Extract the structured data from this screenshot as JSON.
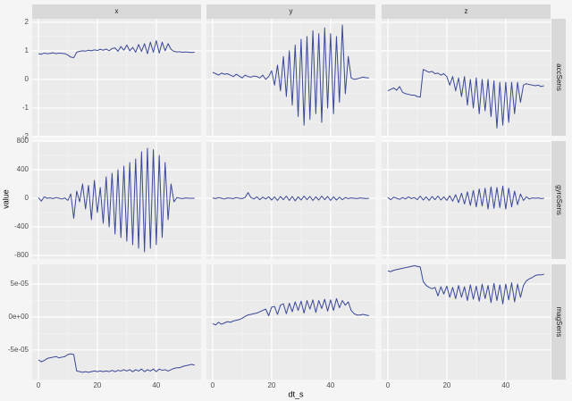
{
  "chart_data": {
    "type": "facet_line",
    "xlabel": "dt_s",
    "ylabel": "value",
    "color": "#1a2a8a",
    "grid": true,
    "columns": [
      "x",
      "y",
      "z"
    ],
    "xlim": [
      -2.1,
      55.2
    ],
    "xticks": [
      0,
      20,
      40
    ],
    "x": [
      0,
      1,
      2,
      3,
      4,
      5,
      6,
      7,
      8,
      9,
      10,
      11,
      12,
      13,
      14,
      15,
      16,
      17,
      18,
      19,
      20,
      21,
      22,
      23,
      24,
      25,
      26,
      27,
      28,
      29,
      30,
      31,
      32,
      33,
      34,
      35,
      36,
      37,
      38,
      39,
      40,
      41,
      42,
      43,
      44,
      45,
      46,
      47,
      48,
      49,
      50,
      51,
      52,
      53
    ],
    "rows": [
      {
        "name": "accSens",
        "ylim": [
          -1.97,
          2.12
        ],
        "yticks": [
          -2,
          -1,
          0,
          1,
          2
        ],
        "values": [
          [
            0.9,
            0.88,
            0.92,
            0.9,
            0.91,
            0.93,
            0.9,
            0.92,
            0.91,
            0.9,
            0.85,
            0.78,
            0.76,
            0.95,
            0.98,
            1.0,
            0.99,
            1.02,
            1.0,
            1.03,
            1.01,
            1.05,
            1.02,
            1.06,
            1.0,
            1.08,
            1.1,
            0.98,
            1.15,
            1.02,
            1.2,
            1.0,
            1.12,
            0.95,
            1.22,
            0.98,
            1.25,
            0.9,
            1.3,
            0.95,
            1.35,
            0.92,
            1.3,
            1.0,
            1.25,
            1.05,
            0.98,
            0.96,
            0.97,
            0.95,
            0.96,
            0.95,
            0.94,
            0.95
          ],
          [
            0.25,
            0.2,
            0.15,
            0.22,
            0.18,
            0.2,
            0.15,
            0.1,
            0.18,
            0.12,
            0.05,
            0.15,
            0.1,
            0.08,
            0.12,
            0.1,
            0.05,
            0.15,
            0.0,
            0.1,
            0.3,
            -0.2,
            0.5,
            -0.4,
            0.8,
            -0.6,
            1.0,
            -0.9,
            1.2,
            -1.3,
            1.4,
            -1.6,
            1.5,
            -1.4,
            1.7,
            -1.2,
            1.6,
            -1.5,
            1.8,
            -1.0,
            1.6,
            -1.2,
            1.5,
            -0.8,
            1.9,
            -0.5,
            0.8,
            0.05,
            0.0,
            0.02,
            0.05,
            0.08,
            0.06,
            0.05
          ],
          [
            -0.4,
            -0.35,
            -0.3,
            -0.38,
            -0.25,
            -0.45,
            -0.5,
            -0.52,
            -0.55,
            -0.55,
            -0.6,
            -0.62,
            0.35,
            0.3,
            0.25,
            0.28,
            0.2,
            0.22,
            0.15,
            0.2,
            0.1,
            -0.2,
            0.1,
            -0.4,
            0.05,
            -0.6,
            0.1,
            -0.9,
            0.0,
            -1.0,
            0.05,
            -1.2,
            0.0,
            -1.1,
            0.0,
            -1.3,
            -0.05,
            -1.7,
            -0.1,
            -1.6,
            -0.1,
            -1.5,
            -0.1,
            -1.2,
            -0.1,
            -0.8,
            -0.2,
            -0.15,
            -0.18,
            -0.2,
            -0.22,
            -0.2,
            -0.25,
            -0.22
          ]
        ]
      },
      {
        "name": "gyroSens",
        "ylim": [
          -850,
          800
        ],
        "yticks": [
          -800,
          -400,
          0,
          400,
          800
        ],
        "values": [
          [
            10,
            -40,
            20,
            0,
            5,
            -5,
            10,
            0,
            -10,
            5,
            -30,
            60,
            -280,
            100,
            -50,
            200,
            -150,
            180,
            -300,
            250,
            -200,
            150,
            -350,
            300,
            -400,
            350,
            -500,
            400,
            -550,
            450,
            -600,
            500,
            -650,
            550,
            -700,
            650,
            -750,
            700,
            -700,
            680,
            -650,
            600,
            -550,
            500,
            -300,
            200,
            -50,
            10,
            0,
            -5,
            5,
            0,
            0,
            0
          ],
          [
            5,
            -5,
            10,
            0,
            -10,
            5,
            0,
            -5,
            10,
            0,
            -5,
            10,
            80,
            10,
            -10,
            20,
            -20,
            15,
            -10,
            20,
            -25,
            20,
            -30,
            25,
            -20,
            30,
            -30,
            25,
            -35,
            20,
            -25,
            30,
            -20,
            25,
            -30,
            20,
            -25,
            30,
            -20,
            25,
            -30,
            20,
            -25,
            15,
            -20,
            10,
            -5,
            5,
            0,
            -5,
            5,
            0,
            -5,
            0
          ],
          [
            10,
            -20,
            15,
            0,
            -15,
            10,
            -10,
            20,
            -5,
            10,
            -20,
            30,
            -25,
            20,
            -30,
            25,
            -20,
            30,
            -25,
            20,
            -30,
            35,
            -40,
            50,
            -60,
            70,
            -80,
            90,
            -100,
            110,
            -120,
            130,
            -110,
            140,
            -150,
            160,
            -140,
            150,
            -130,
            170,
            -150,
            140,
            -120,
            100,
            -90,
            60,
            -30,
            20,
            -10,
            5,
            0,
            5,
            -5,
            0
          ]
        ]
      },
      {
        "name": "magSens",
        "ylim": [
          -9.5e-05,
          8e-05
        ],
        "yticks": [
          {
            "value": -5e-05,
            "label": "-5e-05"
          },
          {
            "value": 0,
            "label": "0e+00"
          },
          {
            "value": 5e-05,
            "label": "5e-05"
          }
        ],
        "values": [
          [
            -6.5e-05,
            -6.8e-05,
            -6.6e-05,
            -6.3e-05,
            -6.2e-05,
            -6.1e-05,
            -6e-05,
            -6.2e-05,
            -6.1e-05,
            -6e-05,
            -5.7e-05,
            -5.6e-05,
            -5.7e-05,
            -8.2e-05,
            -8.3e-05,
            -8.4e-05,
            -8.3e-05,
            -8.4e-05,
            -8.3e-05,
            -8.2e-05,
            -8.3e-05,
            -8.2e-05,
            -8.3e-05,
            -8.2e-05,
            -8.3e-05,
            -8.1e-05,
            -8.3e-05,
            -8.1e-05,
            -8.2e-05,
            -8e-05,
            -8.2e-05,
            -8e-05,
            -8.3e-05,
            -8e-05,
            -8.2e-05,
            -7.9e-05,
            -8.3e-05,
            -8e-05,
            -8.2e-05,
            -7.9e-05,
            -8.3e-05,
            -7.9e-05,
            -8.1e-05,
            -8e-05,
            -8.2e-05,
            -8e-05,
            -7.8e-05,
            -7.7e-05,
            -7.7e-05,
            -7.5e-05,
            -7.4e-05,
            -7.3e-05,
            -7.2e-05,
            -7.3e-05
          ],
          [
            -1e-05,
            -1.2e-05,
            -8e-06,
            -1.1e-05,
            -9e-06,
            -7e-06,
            -8e-06,
            -6e-06,
            -5e-06,
            -4e-06,
            -2e-06,
            1e-06,
            3e-06,
            4e-06,
            5e-06,
            6e-06,
            8e-06,
            1e-05,
            1.2e-05,
            2e-06,
            1.5e-05,
            1.6e-05,
            4e-06,
            1.8e-05,
            2e-05,
            5e-06,
            2.1e-05,
            8e-06,
            2.3e-05,
            1e-05,
            2.4e-05,
            6e-06,
            2.5e-05,
            1.2e-05,
            2.6e-05,
            7e-06,
            2.5e-05,
            1.3e-05,
            2.7e-05,
            9e-06,
            2.6e-05,
            1e-05,
            2.8e-05,
            1.4e-05,
            2.5e-05,
            1.8e-05,
            2.3e-05,
            1e-05,
            5e-06,
            3e-06,
            3e-06,
            4e-06,
            3e-06,
            2e-06
          ],
          [
            7e-05,
            6.9e-05,
            7.1e-05,
            7.2e-05,
            7.3e-05,
            7.4e-05,
            7.5e-05,
            7.6e-05,
            7.7e-05,
            7.8e-05,
            7.7e-05,
            7.6e-05,
            5.4e-05,
            4.8e-05,
            4.5e-05,
            4.3e-05,
            4.5e-05,
            3.2e-05,
            4.6e-05,
            3.5e-05,
            4.7e-05,
            3e-05,
            4.5e-05,
            2.8e-05,
            4.8e-05,
            3e-05,
            4.6e-05,
            2.5e-05,
            4.9e-05,
            2.7e-05,
            4.7e-05,
            2.4e-05,
            5e-05,
            2.8e-05,
            4.8e-05,
            2.2e-05,
            5.1e-05,
            2.5e-05,
            4.9e-05,
            2e-05,
            5e-05,
            2.6e-05,
            5.2e-05,
            2.3e-05,
            5e-05,
            3e-05,
            4.8e-05,
            5.5e-05,
            5.8e-05,
            6e-05,
            6.3e-05,
            6.4e-05,
            6.4e-05,
            6.5e-05
          ]
        ]
      }
    ]
  }
}
